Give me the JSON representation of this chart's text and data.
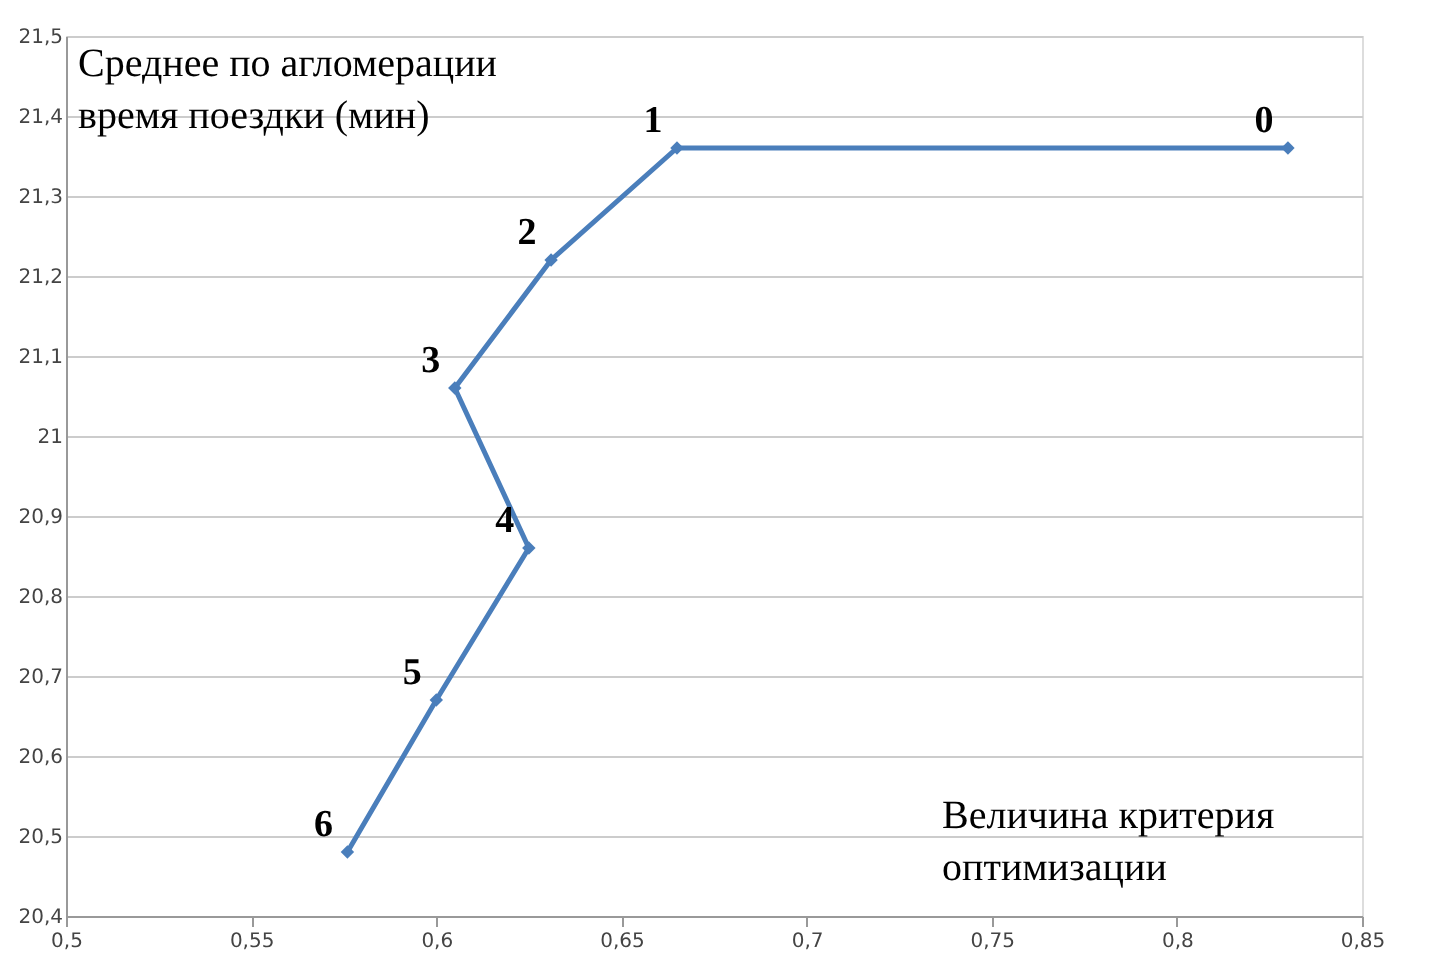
{
  "chart_data": {
    "type": "line",
    "xlabel": "Величина критерия\nоптимизации",
    "ylabel": "Среднее по агломерации\nвремя поездки (мин)",
    "x": [
      0.83,
      0.665,
      0.631,
      0.605,
      0.625,
      0.6,
      0.576
    ],
    "series": [
      {
        "color": "#4a7ebb",
        "values": [
          21.36,
          21.36,
          21.22,
          21.06,
          20.86,
          20.67,
          20.48
        ]
      }
    ],
    "xlim": [
      0.5,
      0.85
    ],
    "xticks": [
      {
        "value": 0.5,
        "label": "0,5"
      },
      {
        "value": 0.55,
        "label": "0,55"
      },
      {
        "value": 0.6,
        "label": "0,6"
      },
      {
        "value": 0.65,
        "label": "0,65"
      },
      {
        "value": 0.7,
        "label": "0,7"
      },
      {
        "value": 0.75,
        "label": "0,75"
      },
      {
        "value": 0.8,
        "label": "0,8"
      },
      {
        "value": 0.85,
        "label": "0,85"
      }
    ],
    "ylim": [
      20.4,
      21.5
    ],
    "yticks": [
      {
        "value": 20.4,
        "label": "20,4"
      },
      {
        "value": 20.5,
        "label": "20,5"
      },
      {
        "value": 20.6,
        "label": "20,6"
      },
      {
        "value": 20.7,
        "label": "20,7"
      },
      {
        "value": 20.8,
        "label": "20,8"
      },
      {
        "value": 20.9,
        "label": "20,9"
      },
      {
        "value": 21,
        "label": "21"
      },
      {
        "value": 21.1,
        "label": "21,1"
      },
      {
        "value": 21.2,
        "label": "21,2"
      },
      {
        "value": 21.3,
        "label": "21,3"
      },
      {
        "value": 21.4,
        "label": "21,4"
      },
      {
        "value": 21.5,
        "label": "21,5"
      }
    ],
    "annotations": [
      {
        "text": "0",
        "x": 0.83,
        "y": 21.36
      },
      {
        "text": "1",
        "x": 0.665,
        "y": 21.36
      },
      {
        "text": "2",
        "x": 0.631,
        "y": 21.22
      },
      {
        "text": "3",
        "x": 0.605,
        "y": 21.06
      },
      {
        "text": "4",
        "x": 0.625,
        "y": 20.86
      },
      {
        "text": "5",
        "x": 0.6,
        "y": 20.67
      },
      {
        "text": "6",
        "x": 0.576,
        "y": 20.48
      }
    ],
    "grid": "y",
    "marker": "diamond",
    "line_style": "solid"
  }
}
